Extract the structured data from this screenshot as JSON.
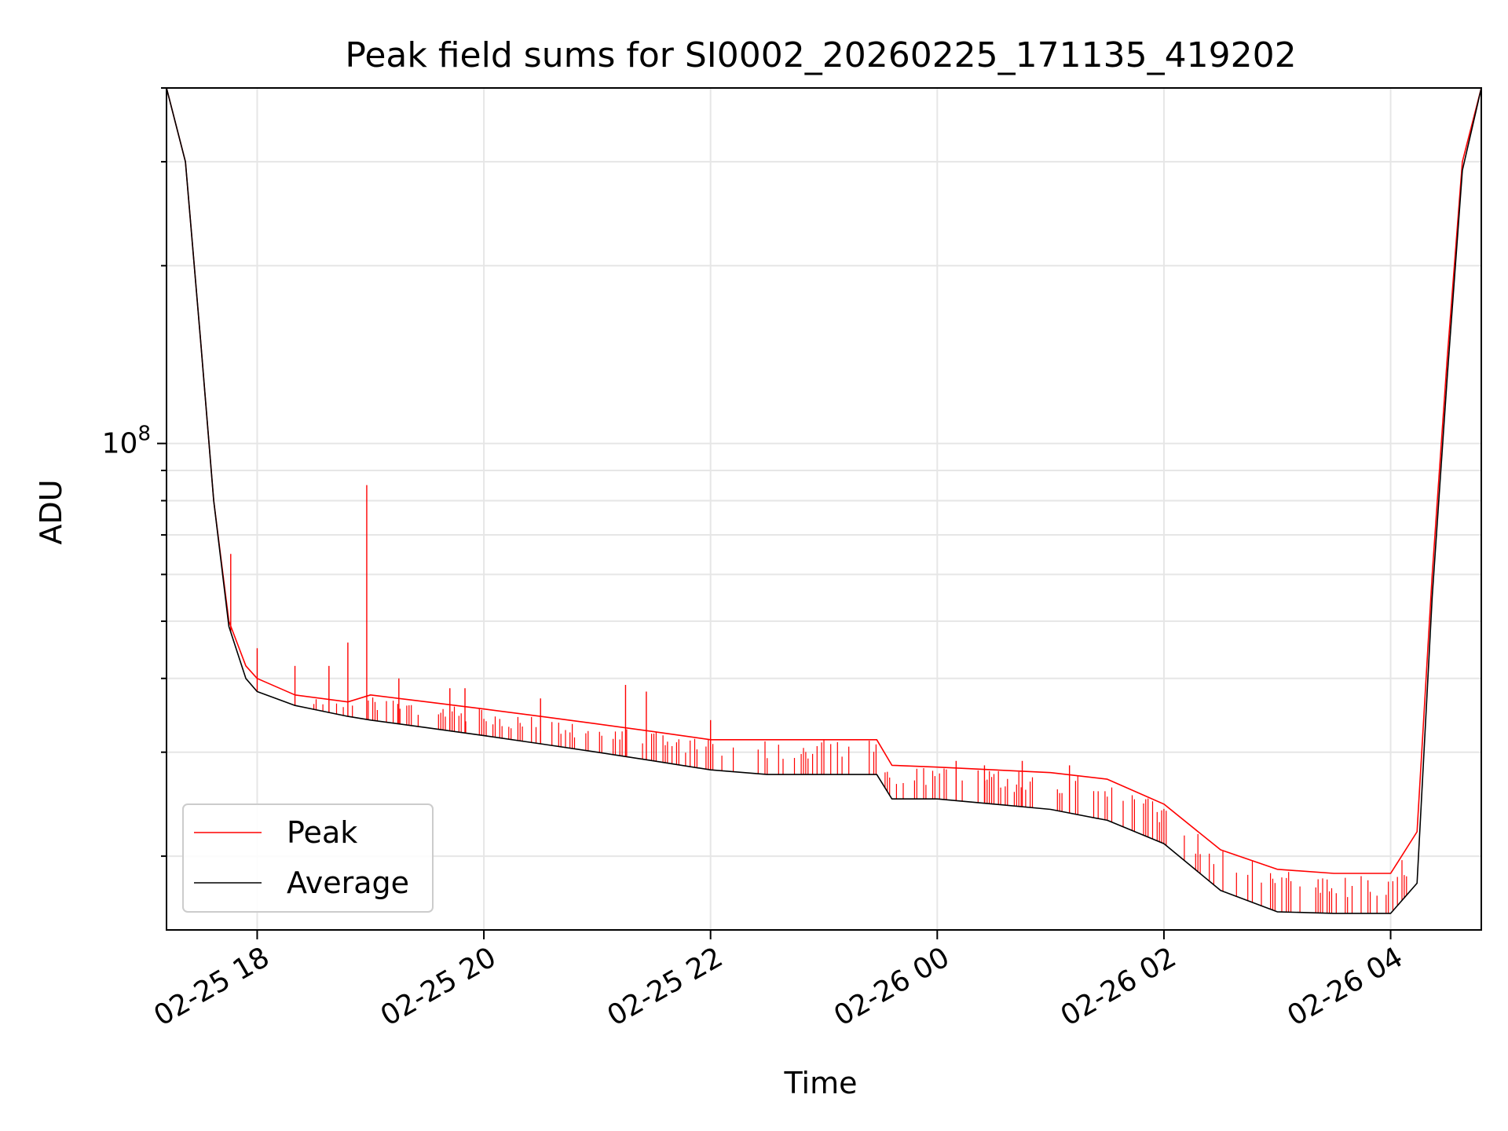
{
  "chart_data": {
    "type": "line",
    "title": "Peak field sums for SI0002_20260225_171135_419202",
    "xlabel": "Time",
    "ylabel": "ADU",
    "yscale": "log",
    "grid": true,
    "legend_position": "lower-left",
    "xlim": [
      "2026-02-25 17:12",
      "2026-02-26 04:48"
    ],
    "ylim": [
      15000000,
      400000000
    ],
    "x_ticks": [
      "2026-02-25 18:00",
      "2026-02-25 20:00",
      "2026-02-25 22:00",
      "2026-02-26 00:00",
      "2026-02-26 02:00",
      "2026-02-26 04:00"
    ],
    "x_tick_labels": [
      "02-25 18",
      "02-25 20",
      "02-25 22",
      "02-26 00",
      "02-26 02",
      "02-26 04"
    ],
    "y_tick_label_base": "10",
    "y_tick_label_exp": "8",
    "y_tick_value": 100000000,
    "series": [
      {
        "name": "Peak",
        "color": "#ff0000",
        "x": [
          "2026-02-25 17:12",
          "2026-02-25 17:22",
          "2026-02-25 17:30",
          "2026-02-25 17:37",
          "2026-02-25 17:45",
          "2026-02-25 17:54",
          "2026-02-25 18:00",
          "2026-02-25 18:20",
          "2026-02-25 18:48",
          "2026-02-25 19:00",
          "2026-02-25 19:30",
          "2026-02-25 20:00",
          "2026-02-25 20:30",
          "2026-02-25 21:00",
          "2026-02-25 21:30",
          "2026-02-25 22:00",
          "2026-02-25 22:30",
          "2026-02-25 23:00",
          "2026-02-25 23:28",
          "2026-02-25 23:36",
          "2026-02-26 00:00",
          "2026-02-26 00:30",
          "2026-02-26 01:00",
          "2026-02-26 01:30",
          "2026-02-26 02:00",
          "2026-02-26 02:30",
          "2026-02-26 03:00",
          "2026-02-26 03:30",
          "2026-02-26 04:00",
          "2026-02-26 04:14",
          "2026-02-26 04:22",
          "2026-02-26 04:30",
          "2026-02-26 04:38",
          "2026-02-26 04:48"
        ],
        "y": [
          400000000,
          300000000,
          150000000,
          80000000,
          50000000,
          42000000,
          40000000,
          37500000,
          36500000,
          37500000,
          36500000,
          35500000,
          34500000,
          33500000,
          32500000,
          31500000,
          31500000,
          31500000,
          31500000,
          28500000,
          28300000,
          28000000,
          27700000,
          27000000,
          24500000,
          20500000,
          19000000,
          18700000,
          18700000,
          22000000,
          60000000,
          140000000,
          300000000,
          400000000
        ]
      },
      {
        "name": "Average",
        "color": "#000000",
        "x": [
          "2026-02-25 17:12",
          "2026-02-25 17:22",
          "2026-02-25 17:30",
          "2026-02-25 17:37",
          "2026-02-25 17:45",
          "2026-02-25 17:54",
          "2026-02-25 18:00",
          "2026-02-25 18:20",
          "2026-02-25 18:48",
          "2026-02-25 19:00",
          "2026-02-25 19:30",
          "2026-02-25 20:00",
          "2026-02-25 20:30",
          "2026-02-25 21:00",
          "2026-02-25 21:30",
          "2026-02-25 22:00",
          "2026-02-25 22:30",
          "2026-02-25 23:00",
          "2026-02-25 23:28",
          "2026-02-25 23:36",
          "2026-02-26 00:00",
          "2026-02-26 00:30",
          "2026-02-26 01:00",
          "2026-02-26 01:30",
          "2026-02-26 02:00",
          "2026-02-26 02:30",
          "2026-02-26 03:00",
          "2026-02-26 03:30",
          "2026-02-26 04:00",
          "2026-02-26 04:14",
          "2026-02-26 04:22",
          "2026-02-26 04:30",
          "2026-02-26 04:38",
          "2026-02-26 04:48"
        ],
        "y": [
          400000000,
          300000000,
          150000000,
          80000000,
          49000000,
          40000000,
          38000000,
          36000000,
          34500000,
          34000000,
          33000000,
          32000000,
          31000000,
          30000000,
          29000000,
          28000000,
          27500000,
          27500000,
          27500000,
          25000000,
          25000000,
          24500000,
          24000000,
          23000000,
          21000000,
          17500000,
          16100000,
          16000000,
          16000000,
          18000000,
          55000000,
          130000000,
          290000000,
          400000000
        ]
      }
    ],
    "spikes": {
      "series": "Peak",
      "x": [
        "2026-02-25 17:46",
        "2026-02-25 18:00",
        "2026-02-25 18:20",
        "2026-02-25 18:38",
        "2026-02-25 18:48",
        "2026-02-25 18:58",
        "2026-02-25 19:15",
        "2026-02-25 19:42",
        "2026-02-25 19:50",
        "2026-02-25 20:30",
        "2026-02-25 21:15",
        "2026-02-25 21:26",
        "2026-02-25 22:00",
        "2026-02-26 00:10",
        "2026-02-26 00:25",
        "2026-02-26 00:45",
        "2026-02-26 01:10"
      ],
      "y": [
        65000000,
        45000000,
        42000000,
        42000000,
        46000000,
        85000000,
        40000000,
        38500000,
        38500000,
        37000000,
        39000000,
        38000000,
        34000000,
        29000000,
        28500000,
        29000000,
        28500000
      ]
    }
  }
}
